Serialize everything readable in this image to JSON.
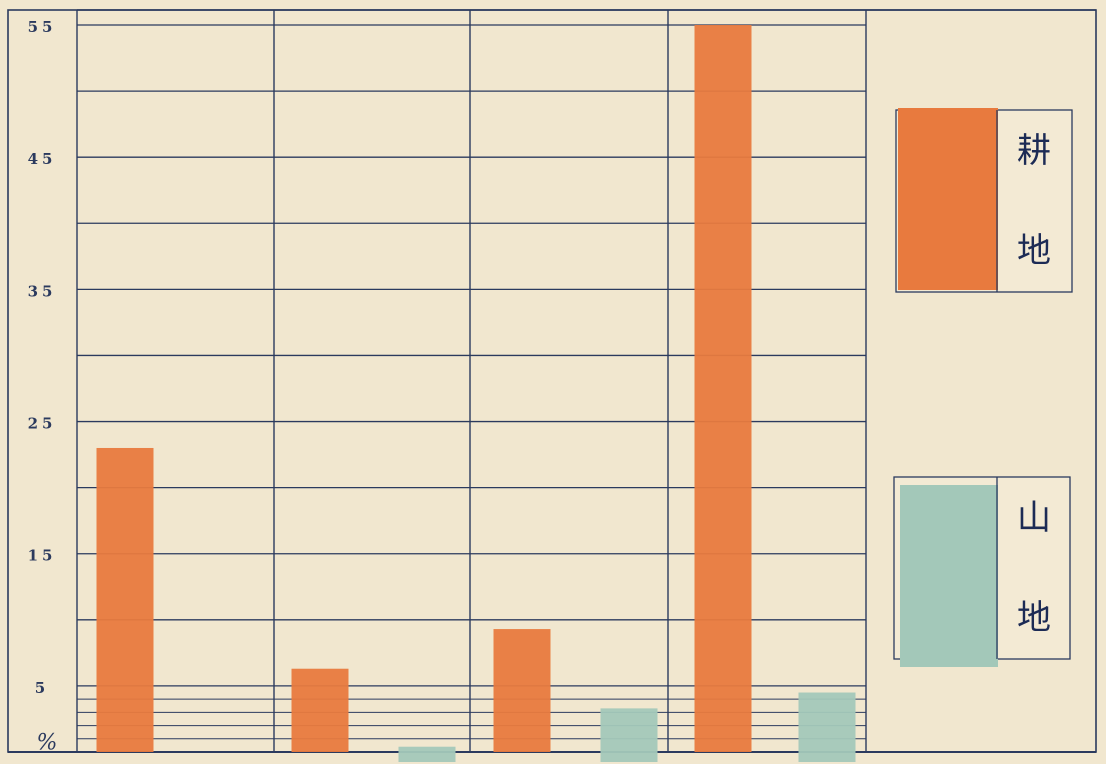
{
  "chart_data": {
    "type": "bar",
    "unit_label": "%",
    "y_ticks": [
      "5",
      "15",
      "25",
      "35",
      "45",
      "55"
    ],
    "ylim": [
      0,
      55
    ],
    "grid": true,
    "legend_placement": "right",
    "series": [
      {
        "name": "耕地",
        "legend_chars": [
          "耕",
          "地"
        ],
        "color": "#e87a3e",
        "values": [
          23.0,
          6.3,
          null,
          9.3,
          null,
          55.0,
          null
        ]
      },
      {
        "name": "山地",
        "legend_chars": [
          "山",
          "地"
        ],
        "color": "#a3c8b9",
        "values": [
          null,
          null,
          0.4,
          null,
          3.3,
          null,
          4.5
        ]
      }
    ]
  },
  "colors": {
    "paper": "#f1e7cf",
    "grid": "#2b3a5e",
    "legend_bg": "#f3ead4"
  }
}
